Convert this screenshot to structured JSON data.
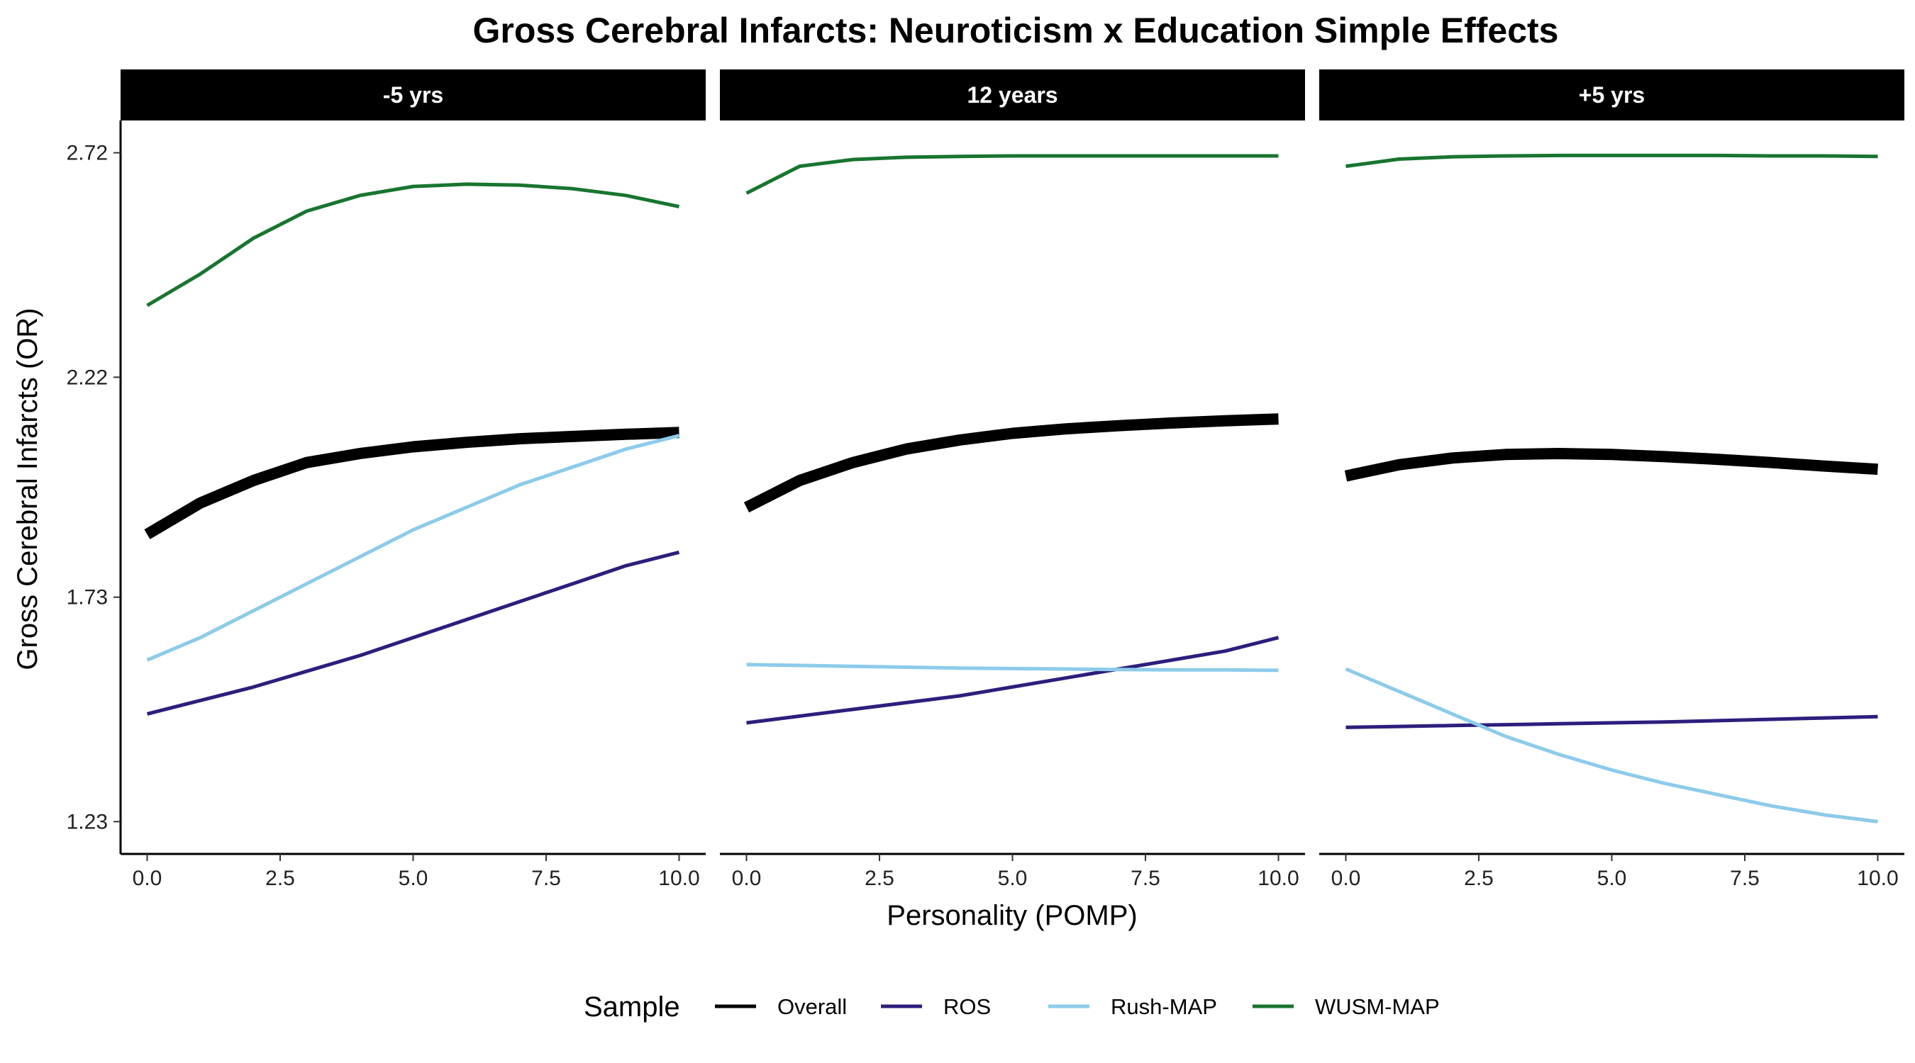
{
  "chart_data": {
    "type": "line",
    "title": "Gross Cerebral Infarcts: Neuroticism x Education Simple Effects",
    "xlabel": "Personality (POMP)",
    "ylabel": "Gross Cerebral Infarcts (OR)",
    "xlim": [
      -0.5,
      10.5
    ],
    "ylim": [
      1.158,
      2.792
    ],
    "x_ticks": [
      0,
      2.5,
      5,
      7.5,
      10
    ],
    "x_tick_labels": [
      "0.0",
      "2.5",
      "5.0",
      "7.5",
      "10.0"
    ],
    "y_ticks": [
      1.23,
      1.73,
      2.22,
      2.72
    ],
    "y_tick_labels": [
      "1.23",
      "1.73",
      "2.22",
      "2.72"
    ],
    "grid": false,
    "legend": {
      "title": "Sample",
      "position": "bottom",
      "entries": [
        "Overall",
        "ROS",
        "Rush-MAP",
        "WUSM-MAP"
      ]
    },
    "series_style": [
      {
        "name": "Overall",
        "color": "#000000",
        "thick": true
      },
      {
        "name": "ROS",
        "color": "#2d1e7d",
        "thick": false
      },
      {
        "name": "Rush-MAP",
        "color": "#8ccbea",
        "thick": false
      },
      {
        "name": "WUSM-MAP",
        "color": "#18752f",
        "thick": false
      }
    ],
    "x": [
      0,
      1,
      2,
      3,
      4,
      5,
      6,
      7,
      8,
      9,
      10
    ],
    "panels": [
      {
        "label": "-5 yrs",
        "series": [
          {
            "name": "Overall",
            "values": [
              1.87,
              1.94,
              1.99,
              2.03,
              2.05,
              2.065,
              2.075,
              2.083,
              2.088,
              2.093,
              2.097
            ]
          },
          {
            "name": "ROS",
            "values": [
              1.47,
              1.5,
              1.53,
              1.565,
              1.6,
              1.64,
              1.68,
              1.72,
              1.76,
              1.8,
              1.83
            ]
          },
          {
            "name": "Rush-MAP",
            "values": [
              1.59,
              1.64,
              1.7,
              1.76,
              1.82,
              1.88,
              1.93,
              1.98,
              2.02,
              2.06,
              2.09
            ]
          },
          {
            "name": "WUSM-MAP",
            "values": [
              2.38,
              2.45,
              2.53,
              2.59,
              2.625,
              2.645,
              2.65,
              2.648,
              2.64,
              2.625,
              2.6
            ]
          }
        ]
      },
      {
        "label": "12 years",
        "series": [
          {
            "name": "Overall",
            "values": [
              1.93,
              1.99,
              2.03,
              2.06,
              2.08,
              2.095,
              2.105,
              2.112,
              2.118,
              2.123,
              2.127
            ]
          },
          {
            "name": "ROS",
            "values": [
              1.45,
              1.465,
              1.48,
              1.495,
              1.51,
              1.53,
              1.55,
              1.57,
              1.59,
              1.61,
              1.64
            ]
          },
          {
            "name": "Rush-MAP",
            "values": [
              1.58,
              1.578,
              1.576,
              1.574,
              1.572,
              1.571,
              1.57,
              1.569,
              1.568,
              1.568,
              1.567
            ]
          },
          {
            "name": "WUSM-MAP",
            "values": [
              2.63,
              2.69,
              2.705,
              2.71,
              2.712,
              2.713,
              2.713,
              2.713,
              2.713,
              2.713,
              2.713
            ]
          }
        ]
      },
      {
        "label": "+5 yrs",
        "series": [
          {
            "name": "Overall",
            "values": [
              2.0,
              2.025,
              2.04,
              2.048,
              2.05,
              2.048,
              2.043,
              2.037,
              2.03,
              2.022,
              2.015
            ]
          },
          {
            "name": "ROS",
            "values": [
              1.44,
              1.442,
              1.444,
              1.446,
              1.448,
              1.45,
              1.452,
              1.455,
              1.458,
              1.461,
              1.464
            ]
          },
          {
            "name": "Rush-MAP",
            "values": [
              1.57,
              1.52,
              1.47,
              1.42,
              1.38,
              1.345,
              1.315,
              1.29,
              1.265,
              1.245,
              1.23
            ]
          },
          {
            "name": "WUSM-MAP",
            "values": [
              2.69,
              2.706,
              2.711,
              2.713,
              2.714,
              2.714,
              2.714,
              2.714,
              2.713,
              2.713,
              2.712
            ]
          }
        ]
      }
    ]
  }
}
